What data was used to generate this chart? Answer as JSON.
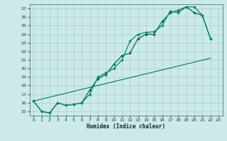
{
  "title": "",
  "xlabel": "Humidex (Indice chaleur)",
  "bg_color": "#cceae8",
  "grid_color": "#aacccc",
  "line_color1": "#006666",
  "line_color2": "#008877",
  "line_color3": "#007766",
  "xlim": [
    -0.5,
    23.5
  ],
  "ylim": [
    14.5,
    27.5
  ],
  "xticks": [
    0,
    1,
    2,
    3,
    4,
    5,
    6,
    7,
    8,
    9,
    10,
    11,
    12,
    13,
    14,
    15,
    16,
    17,
    18,
    19,
    20,
    21,
    22,
    23
  ],
  "yticks": [
    15,
    16,
    17,
    18,
    19,
    20,
    21,
    22,
    23,
    24,
    25,
    26,
    27
  ],
  "line1_x": [
    0,
    1,
    2,
    3,
    4,
    5,
    6,
    7,
    8,
    9,
    10,
    11,
    12,
    13,
    14,
    15,
    16,
    17,
    18,
    19,
    20,
    21,
    22
  ],
  "line1_y": [
    16.2,
    15.0,
    14.8,
    16.0,
    15.7,
    15.8,
    16.0,
    17.5,
    18.8,
    19.3,
    20.5,
    21.5,
    21.8,
    23.5,
    24.0,
    24.0,
    25.5,
    26.5,
    26.8,
    27.2,
    26.5,
    26.2,
    23.5
  ],
  "line2_x": [
    0,
    1,
    2,
    3,
    4,
    5,
    6,
    7,
    8,
    9,
    10,
    11,
    12,
    13,
    14,
    15,
    16,
    17,
    18,
    19,
    20,
    21,
    22
  ],
  "line2_y": [
    16.2,
    15.0,
    14.8,
    16.0,
    15.7,
    15.8,
    16.0,
    17.0,
    19.0,
    19.5,
    20.0,
    21.0,
    23.2,
    24.0,
    24.2,
    24.3,
    25.0,
    26.7,
    26.5,
    27.2,
    27.2,
    26.2,
    23.5
  ],
  "line3_x": [
    0,
    22
  ],
  "line3_y": [
    16.2,
    21.2
  ]
}
